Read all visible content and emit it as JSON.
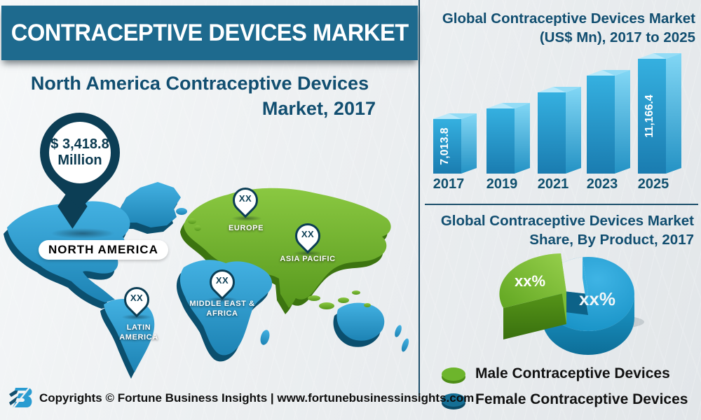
{
  "banner": {
    "title": "CONTRACEPTIVE DEVICES MARKET"
  },
  "map_section": {
    "title_line1": "North America Contraceptive Devices",
    "title_line2": "Market, 2017",
    "value_pin": {
      "value": "$ 3,418.8",
      "unit": "Million",
      "region": "NORTH AMERICA"
    },
    "pins": [
      {
        "region": "EUROPE",
        "value": "XX",
        "label_line1": "EUROPE",
        "label_line2": ""
      },
      {
        "region": "ASIA PACIFIC",
        "value": "XX",
        "label_line1": "ASIA PACIFIC",
        "label_line2": ""
      },
      {
        "region": "MIDDLE EAST & AFRICA",
        "value": "XX",
        "label_line1": "MIDDLE EAST &",
        "label_line2": "AFRICA"
      },
      {
        "region": "LATIN AMERICA",
        "value": "XX",
        "label_line1": "LATIN",
        "label_line2": "AMERICA"
      }
    ]
  },
  "chart_data": [
    {
      "type": "bar",
      "title": "Global Contraceptive Devices Market (US$ Mn), 2017 to 2025",
      "title_lines": [
        "Global Contraceptive Devices Market",
        "(US$ Mn), 2017 to 2025"
      ],
      "categories": [
        "2017",
        "2019",
        "2021",
        "2023",
        "2025"
      ],
      "values": [
        7013.8,
        7750,
        8850,
        10000,
        11166.4
      ],
      "values_estimated": [
        false,
        true,
        true,
        true,
        false
      ],
      "value_labels": [
        "7,013.8",
        "",
        "",
        "",
        "11,166.4"
      ],
      "unit": "US$ Mn",
      "ylim": [
        7013.8,
        11166.4
      ],
      "bar_color": "#2196cf",
      "grid": false,
      "legend": "none"
    },
    {
      "type": "pie",
      "title": "Global Contraceptive Devices Market Share, By Product, 2017",
      "title_lines": [
        "Global Contraceptive Devices Market",
        "Share, By Product, 2017"
      ],
      "slices": [
        {
          "label": "Male Contraceptive Devices",
          "value_label": "xx%",
          "color": "#6db52c"
        },
        {
          "label": "Female Contraceptive Devices",
          "value_label": "xx%",
          "color": "#1a7fa8"
        }
      ],
      "legend_position": "bottom"
    }
  ],
  "footer": {
    "logo": "fortune-business-insights-logo",
    "text": "Copyrights © Fortune Business Insights | www.fortunebusinessinsights.com"
  },
  "colors": {
    "banner_teal": "#1e6a8e",
    "heading_navy": "#114e70",
    "map_blue": "#2d9ed4",
    "map_blue_dark": "#0b4f6e",
    "map_green": "#6fb32c",
    "map_green_dark": "#3c7410",
    "pin_dark": "#0c3e55",
    "bar_front_blue": "#1f8fc6",
    "legend_green": "#6db52c",
    "legend_teal": "#156f95"
  }
}
